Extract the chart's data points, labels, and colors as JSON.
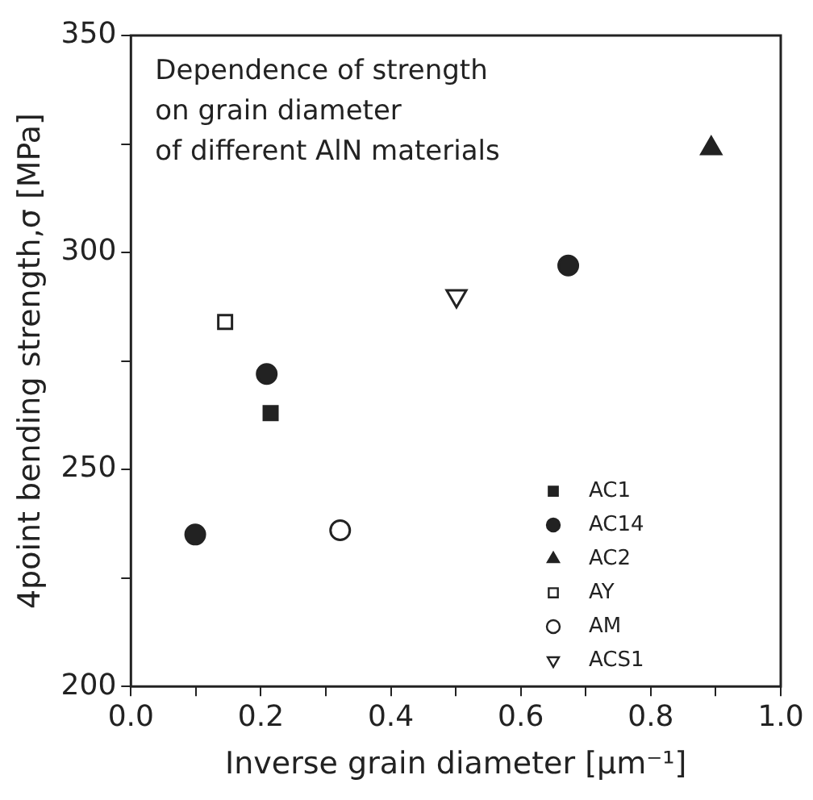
{
  "chart_data": {
    "type": "scatter",
    "xlabel": "Inverse grain diameter [μm⁻¹]",
    "ylabel": "4point bending strength,σ [MPa]",
    "annotations": [
      "Dependence of strength\non grain diameter\nof different AlN materials"
    ],
    "xlim": [
      0,
      1
    ],
    "xticks": [
      {
        "value": 0,
        "label": "0.0"
      },
      {
        "value": 0.1,
        "label": null
      },
      {
        "value": 0.2,
        "label": "0.2"
      },
      {
        "value": 0.3,
        "label": null
      },
      {
        "value": 0.4,
        "label": "0.4"
      },
      {
        "value": 0.5,
        "label": null
      },
      {
        "value": 0.6,
        "label": "0.6"
      },
      {
        "value": 0.7,
        "label": null
      },
      {
        "value": 0.8,
        "label": "0.8"
      },
      {
        "value": 0.9,
        "label": null
      },
      {
        "value": 1,
        "label": "1.0"
      }
    ],
    "ylim": [
      200,
      350
    ],
    "yticks": [
      200,
      {
        "value": 225,
        "label": null
      },
      250,
      {
        "value": 275,
        "label": null
      },
      300,
      {
        "value": 325,
        "label": null
      },
      350
    ],
    "grid": false,
    "legend": "bottom right",
    "series": [
      {
        "name": "AC1",
        "color": "#222222",
        "marker": "square",
        "x": [
          0.215
        ],
        "values": [
          263
        ]
      },
      {
        "name": "AC14",
        "color": "#222222",
        "marker": "circle",
        "x": [
          0.099,
          0.209,
          0.673
        ],
        "values": [
          235,
          272,
          297
        ]
      },
      {
        "name": "AC2",
        "color": "#222222",
        "marker": "triangle",
        "x": [
          0.893
        ],
        "values": [
          324
        ]
      },
      {
        "name": "AY",
        "color": "#222222",
        "marker": "square-open",
        "x": [
          0.145
        ],
        "values": [
          284
        ]
      },
      {
        "name": "AM",
        "color": "#222222",
        "marker": "circle-open",
        "x": [
          0.322
        ],
        "values": [
          236
        ]
      },
      {
        "name": "ACS1",
        "color": "#222222",
        "marker": "triangle-down-open",
        "x": [
          0.501
        ],
        "values": [
          290
        ]
      }
    ]
  }
}
